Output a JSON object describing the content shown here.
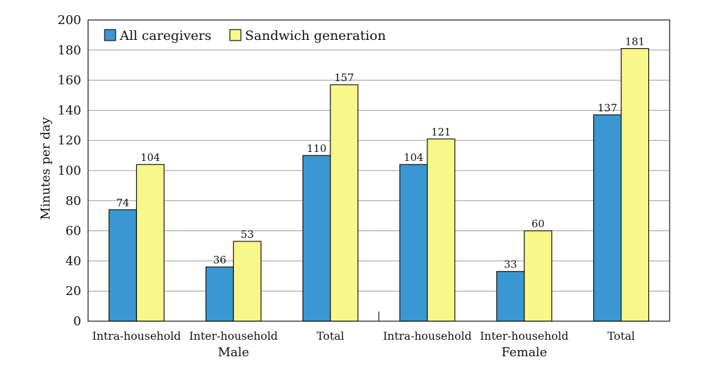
{
  "chart_data": {
    "type": "bar",
    "ylabel": "Minutes per day",
    "ylim": [
      0,
      200
    ],
    "yticks": [
      0,
      20,
      40,
      60,
      80,
      100,
      120,
      140,
      160,
      180,
      200
    ],
    "grid": true,
    "legend_position": "top-left",
    "categories": [
      "Intra-household",
      "Inter-household",
      "Total",
      "Intra-household",
      "Inter-household",
      "Total"
    ],
    "groups": [
      {
        "label": "Male",
        "categories": [
          0,
          1,
          2
        ]
      },
      {
        "label": "Female",
        "categories": [
          3,
          4,
          5
        ]
      }
    ],
    "series": [
      {
        "name": "All caregivers",
        "color": "#3a97d1",
        "values": [
          74,
          36,
          110,
          104,
          33,
          137
        ]
      },
      {
        "name": "Sandwich generation",
        "color": "#f7f78a",
        "values": [
          104,
          53,
          157,
          121,
          60,
          181
        ]
      }
    ]
  }
}
